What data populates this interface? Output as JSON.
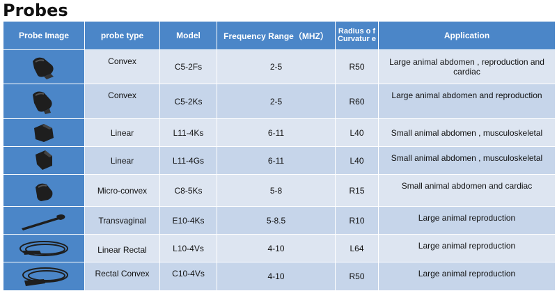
{
  "title": "Probes",
  "headers": {
    "image": "Probe Image",
    "type": "probe type",
    "model": "Model",
    "freq": "Frequency Range（MHZ）",
    "radius": "Radius o f Curvatur e",
    "app": "Application"
  },
  "rows": [
    {
      "type": "Convex",
      "model": "C5-2Fs",
      "freq": "2-5",
      "radius": "R50",
      "app": "Large animal abdomen , reproduction and cardiac",
      "icon": "convex-probe-icon"
    },
    {
      "type": "Convex",
      "model": "C5-2Ks",
      "freq": "2-5",
      "radius": "R60",
      "app": "Large animal abdomen and reproduction",
      "icon": "convex-probe-icon"
    },
    {
      "type": "Linear",
      "model": "L11-4Ks",
      "freq": "6-11",
      "radius": "L40",
      "app": "Small animal abdomen , musculoskeletal",
      "icon": "linear-probe-icon"
    },
    {
      "type": "Linear",
      "model": "L11-4Gs",
      "freq": "6-11",
      "radius": "L40",
      "app": "Small animal abdomen , musculoskeletal",
      "icon": "linear-probe-icon"
    },
    {
      "type": "Micro-convex",
      "model": "C8-5Ks",
      "freq": "5-8",
      "radius": "R15",
      "app": "Small animal abdomen and cardiac",
      "icon": "micro-convex-probe-icon"
    },
    {
      "type": "Transvaginal",
      "model": "E10-4Ks",
      "freq": "5-8.5",
      "radius": "R10",
      "app": "Large animal reproduction",
      "icon": "transvaginal-probe-icon"
    },
    {
      "type": "Linear Rectal",
      "model": "L10-4Vs",
      "freq": "4-10",
      "radius": "L64",
      "app": "Large animal reproduction",
      "icon": "rectal-probe-icon"
    },
    {
      "type": "Rectal Convex",
      "model": "C10-4Vs",
      "freq": "4-10",
      "radius": "R50",
      "app": "Large animal  reproduction",
      "icon": "rectal-probe-icon"
    }
  ]
}
